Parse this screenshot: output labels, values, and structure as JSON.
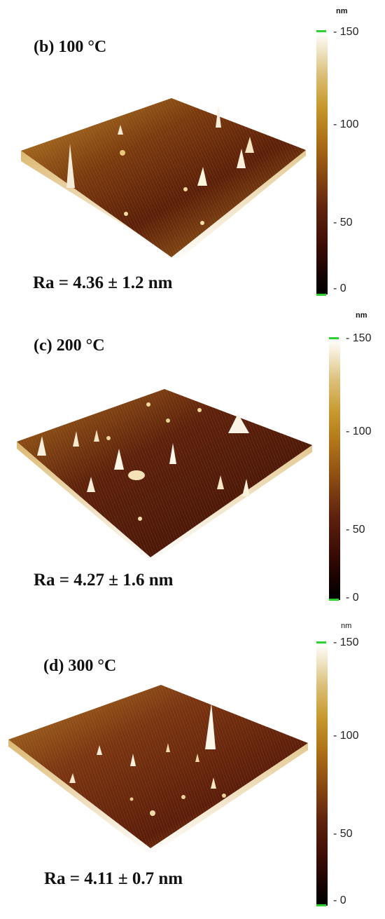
{
  "panels": [
    {
      "title": "(b) 100 °C",
      "ra": "Ra = 4.36 ± 1.2 nm",
      "colorbar": {
        "unit": "nm",
        "ticks": [
          "- 150",
          "- 100",
          "- 50",
          "- 0"
        ]
      }
    },
    {
      "title": "(c) 200 °C",
      "ra": "Ra = 4.27 ± 1.6 nm",
      "colorbar": {
        "unit": "nm",
        "ticks": [
          "- 150",
          "- 100",
          "- 50",
          "- 0"
        ]
      }
    },
    {
      "title": "(d) 300 °C",
      "ra": "Ra = 4.11 ± 0.7 nm",
      "colorbar": {
        "unit": "nm",
        "ticks": [
          "- 150",
          "- 100",
          "- 50",
          "- 0"
        ]
      }
    }
  ],
  "colors": {
    "low": "#000000",
    "mid": "#8a4a12",
    "high": "#ffffff",
    "marker": "#2fd12f"
  }
}
